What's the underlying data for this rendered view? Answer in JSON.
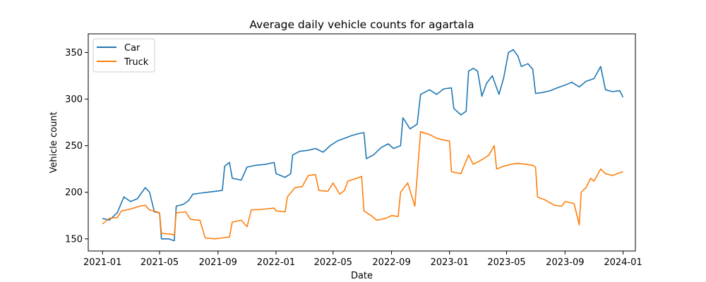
{
  "chart_data": {
    "type": "line",
    "title": "Average daily vehicle counts for agartala",
    "xlabel": "Date",
    "ylabel": "Vehicle count",
    "xlim": [
      "2020-12-02",
      "2024-01-27"
    ],
    "ylim": [
      137,
      370
    ],
    "x_ticks": [
      "2021-01",
      "2021-05",
      "2021-09",
      "2022-01",
      "2022-05",
      "2022-09",
      "2023-01",
      "2023-05",
      "2023-09",
      "2024-01"
    ],
    "y_ticks": [
      150,
      200,
      250,
      300,
      350
    ],
    "grid": false,
    "legend_position": "upper left",
    "series": [
      {
        "name": "Car",
        "color": "#1f77b4",
        "points": [
          [
            "2021-01-01",
            172
          ],
          [
            "2021-01-15",
            170
          ],
          [
            "2021-02-01",
            178
          ],
          [
            "2021-02-15",
            195
          ],
          [
            "2021-03-01",
            190
          ],
          [
            "2021-03-15",
            193
          ],
          [
            "2021-04-01",
            205
          ],
          [
            "2021-04-10",
            200
          ],
          [
            "2021-04-20",
            179
          ],
          [
            "2021-05-01",
            178
          ],
          [
            "2021-05-05",
            150
          ],
          [
            "2021-05-20",
            150
          ],
          [
            "2021-06-01",
            148
          ],
          [
            "2021-06-05",
            185
          ],
          [
            "2021-06-20",
            187
          ],
          [
            "2021-07-01",
            191
          ],
          [
            "2021-07-10",
            198
          ],
          [
            "2021-07-25",
            199
          ],
          [
            "2021-08-10",
            200
          ],
          [
            "2021-08-25",
            201
          ],
          [
            "2021-09-10",
            202
          ],
          [
            "2021-09-15",
            228
          ],
          [
            "2021-09-25",
            232
          ],
          [
            "2021-10-01",
            215
          ],
          [
            "2021-10-20",
            213
          ],
          [
            "2021-11-01",
            227
          ],
          [
            "2021-11-20",
            229
          ],
          [
            "2021-12-10",
            230
          ],
          [
            "2021-12-28",
            232
          ],
          [
            "2022-01-01",
            220
          ],
          [
            "2022-01-20",
            216
          ],
          [
            "2022-02-01",
            220
          ],
          [
            "2022-02-05",
            240
          ],
          [
            "2022-02-20",
            244
          ],
          [
            "2022-03-10",
            245
          ],
          [
            "2022-03-25",
            247
          ],
          [
            "2022-04-10",
            243
          ],
          [
            "2022-04-25",
            250
          ],
          [
            "2022-05-10",
            255
          ],
          [
            "2022-05-25",
            258
          ],
          [
            "2022-06-10",
            261
          ],
          [
            "2022-06-25",
            263
          ],
          [
            "2022-07-05",
            264
          ],
          [
            "2022-07-10",
            236
          ],
          [
            "2022-07-25",
            240
          ],
          [
            "2022-08-10",
            248
          ],
          [
            "2022-08-25",
            252
          ],
          [
            "2022-09-05",
            247
          ],
          [
            "2022-09-20",
            250
          ],
          [
            "2022-09-25",
            280
          ],
          [
            "2022-10-10",
            268
          ],
          [
            "2022-10-25",
            273
          ],
          [
            "2022-11-01",
            305
          ],
          [
            "2022-11-20",
            310
          ],
          [
            "2022-12-05",
            305
          ],
          [
            "2022-12-20",
            311
          ],
          [
            "2023-01-05",
            312
          ],
          [
            "2023-01-10",
            290
          ],
          [
            "2023-01-25",
            283
          ],
          [
            "2023-02-05",
            287
          ],
          [
            "2023-02-10",
            330
          ],
          [
            "2023-02-20",
            333
          ],
          [
            "2023-03-01",
            330
          ],
          [
            "2023-03-10",
            303
          ],
          [
            "2023-03-20",
            317
          ],
          [
            "2023-04-01",
            325
          ],
          [
            "2023-04-15",
            305
          ],
          [
            "2023-04-25",
            323
          ],
          [
            "2023-05-05",
            350
          ],
          [
            "2023-05-15",
            353
          ],
          [
            "2023-05-25",
            346
          ],
          [
            "2023-06-01",
            335
          ],
          [
            "2023-06-15",
            338
          ],
          [
            "2023-06-25",
            332
          ],
          [
            "2023-07-01",
            306
          ],
          [
            "2023-07-15",
            307
          ],
          [
            "2023-08-01",
            309
          ],
          [
            "2023-08-15",
            312
          ],
          [
            "2023-09-01",
            315
          ],
          [
            "2023-09-15",
            318
          ],
          [
            "2023-10-01",
            313
          ],
          [
            "2023-10-15",
            319
          ],
          [
            "2023-11-01",
            322
          ],
          [
            "2023-11-15",
            335
          ],
          [
            "2023-11-25",
            310
          ],
          [
            "2023-12-10",
            308
          ],
          [
            "2023-12-25",
            309
          ],
          [
            "2024-01-01",
            302
          ]
        ]
      },
      {
        "name": "Truck",
        "color": "#ff7f0e",
        "points": [
          [
            "2021-01-01",
            166
          ],
          [
            "2021-01-15",
            172
          ],
          [
            "2021-02-01",
            173
          ],
          [
            "2021-02-10",
            180
          ],
          [
            "2021-03-01",
            182
          ],
          [
            "2021-03-20",
            185
          ],
          [
            "2021-04-01",
            186
          ],
          [
            "2021-04-10",
            181
          ],
          [
            "2021-04-25",
            179
          ],
          [
            "2021-05-01",
            178
          ],
          [
            "2021-05-05",
            156
          ],
          [
            "2021-05-25",
            155
          ],
          [
            "2021-06-01",
            154
          ],
          [
            "2021-06-05",
            178
          ],
          [
            "2021-06-25",
            179
          ],
          [
            "2021-07-05",
            171
          ],
          [
            "2021-07-25",
            170
          ],
          [
            "2021-08-05",
            151
          ],
          [
            "2021-08-25",
            150
          ],
          [
            "2021-09-10",
            151
          ],
          [
            "2021-09-25",
            152
          ],
          [
            "2021-10-01",
            168
          ],
          [
            "2021-10-20",
            170
          ],
          [
            "2021-11-01",
            163
          ],
          [
            "2021-11-10",
            181
          ],
          [
            "2021-12-10",
            182
          ],
          [
            "2021-12-28",
            183
          ],
          [
            "2022-01-01",
            180
          ],
          [
            "2022-01-20",
            179
          ],
          [
            "2022-01-25",
            195
          ],
          [
            "2022-02-10",
            205
          ],
          [
            "2022-02-25",
            206
          ],
          [
            "2022-03-10",
            218
          ],
          [
            "2022-03-25",
            219
          ],
          [
            "2022-04-01",
            202
          ],
          [
            "2022-04-20",
            201
          ],
          [
            "2022-05-01",
            210
          ],
          [
            "2022-05-15",
            198
          ],
          [
            "2022-05-25",
            202
          ],
          [
            "2022-06-01",
            212
          ],
          [
            "2022-06-20",
            215
          ],
          [
            "2022-06-30",
            217
          ],
          [
            "2022-07-05",
            180
          ],
          [
            "2022-07-20",
            175
          ],
          [
            "2022-08-01",
            170
          ],
          [
            "2022-08-20",
            172
          ],
          [
            "2022-09-01",
            175
          ],
          [
            "2022-09-15",
            174
          ],
          [
            "2022-09-20",
            200
          ],
          [
            "2022-10-05",
            210
          ],
          [
            "2022-10-20",
            185
          ],
          [
            "2022-11-01",
            265
          ],
          [
            "2022-11-20",
            262
          ],
          [
            "2022-12-05",
            258
          ],
          [
            "2022-12-20",
            256
          ],
          [
            "2023-01-01",
            255
          ],
          [
            "2023-01-05",
            222
          ],
          [
            "2023-01-25",
            220
          ],
          [
            "2023-02-10",
            240
          ],
          [
            "2023-02-20",
            230
          ],
          [
            "2023-03-10",
            235
          ],
          [
            "2023-03-25",
            240
          ],
          [
            "2023-04-05",
            250
          ],
          [
            "2023-04-10",
            225
          ],
          [
            "2023-04-25",
            228
          ],
          [
            "2023-05-10",
            230
          ],
          [
            "2023-05-25",
            231
          ],
          [
            "2023-06-10",
            230
          ],
          [
            "2023-06-25",
            229
          ],
          [
            "2023-07-01",
            227
          ],
          [
            "2023-07-05",
            195
          ],
          [
            "2023-07-20",
            192
          ],
          [
            "2023-08-10",
            186
          ],
          [
            "2023-08-25",
            185
          ],
          [
            "2023-09-01",
            190
          ],
          [
            "2023-09-20",
            188
          ],
          [
            "2023-10-01",
            165
          ],
          [
            "2023-10-05",
            200
          ],
          [
            "2023-10-15",
            205
          ],
          [
            "2023-10-25",
            215
          ],
          [
            "2023-11-01",
            212
          ],
          [
            "2023-11-15",
            225
          ],
          [
            "2023-11-25",
            220
          ],
          [
            "2023-12-10",
            218
          ],
          [
            "2023-12-25",
            221
          ],
          [
            "2024-01-01",
            222
          ]
        ]
      }
    ]
  }
}
